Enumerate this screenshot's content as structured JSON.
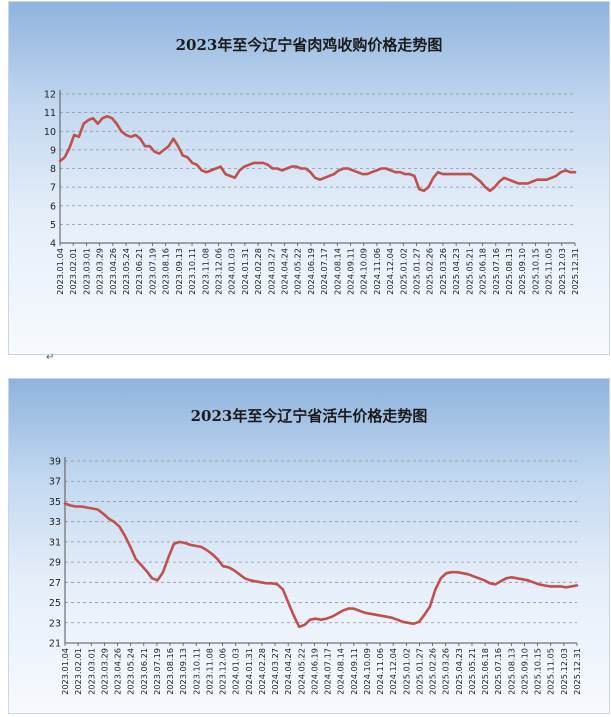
{
  "chart_data": [
    {
      "type": "line",
      "title": "2023年至今辽宁省肉鸡收购价格走势图",
      "xlabel": "",
      "ylabel": "",
      "ylim": [
        4,
        12
      ],
      "yticks": [
        4,
        5,
        6,
        7,
        8,
        9,
        10,
        11,
        12
      ],
      "grid": true,
      "x_ticks": [
        "2023.01.04",
        "2023.02.01",
        "2023.03.01",
        "2023.03.29",
        "2023.04.26",
        "2023.05.24",
        "2023.06.21",
        "2023.07.19",
        "2023.08.16",
        "2023.09.13",
        "2023.10.11",
        "2023.11.08",
        "2023.12.06",
        "2024.01.03",
        "2024.01.31",
        "2024.02.28",
        "2024.03.27",
        "2024.04.24",
        "2024.05.22",
        "2024.06.19",
        "2024.07.17",
        "2024.08.14",
        "2024.09.11",
        "2024.10.09",
        "2024.11.06",
        "2024.12.04",
        "2025.01.02",
        "2025.01.27",
        "2025.02.26",
        "2025.03.26",
        "2025.04.23",
        "2025.05.21",
        "2025.06.18",
        "2025.07.16",
        "2025.08.13",
        "2025.09.10",
        "2025.10.15",
        "2025.11.05",
        "2025.12.03",
        "2025.12.31"
      ],
      "series_color": "#c0504d",
      "values": [
        8.4,
        8.6,
        9.1,
        9.8,
        9.7,
        10.4,
        10.6,
        10.7,
        10.4,
        10.7,
        10.8,
        10.7,
        10.4,
        10.0,
        9.8,
        9.7,
        9.8,
        9.6,
        9.2,
        9.2,
        8.9,
        8.8,
        9.0,
        9.2,
        9.6,
        9.2,
        8.7,
        8.6,
        8.3,
        8.2,
        7.9,
        7.8,
        7.9,
        8.0,
        8.1,
        7.7,
        7.6,
        7.5,
        7.9,
        8.1,
        8.2,
        8.3,
        8.3,
        8.3,
        8.2,
        8.0,
        8.0,
        7.9,
        8.0,
        8.1,
        8.1,
        8.0,
        8.0,
        7.8,
        7.5,
        7.4,
        7.5,
        7.6,
        7.7,
        7.9,
        8.0,
        8.0,
        7.9,
        7.8,
        7.7,
        7.7,
        7.8,
        7.9,
        8.0,
        8.0,
        7.9,
        7.8,
        7.8,
        7.7,
        7.7,
        7.6,
        6.9,
        6.8,
        7.0,
        7.5,
        7.8,
        7.7,
        7.7,
        7.7,
        7.7,
        7.7,
        7.7,
        7.7,
        7.5,
        7.3,
        7.0,
        6.8,
        7.0,
        7.3,
        7.5,
        7.4,
        7.3,
        7.2,
        7.2,
        7.2,
        7.3,
        7.4,
        7.4,
        7.4,
        7.5,
        7.6,
        7.8,
        7.9,
        7.8,
        7.8
      ]
    },
    {
      "type": "line",
      "title": "2023年至今辽宁省活牛价格走势图",
      "xlabel": "",
      "ylabel": "",
      "ylim": [
        21,
        39
      ],
      "yticks": [
        21,
        23,
        25,
        27,
        29,
        31,
        33,
        35,
        37,
        39
      ],
      "grid": true,
      "x_ticks": [
        "2023.01.04",
        "2023.02.01",
        "2023.03.01",
        "2023.03.29",
        "2023.04.26",
        "2023.05.24",
        "2023.06.21",
        "2023.07.19",
        "2023.08.16",
        "2023.09.13",
        "2023.10.11",
        "2023.11.08",
        "2023.12.06",
        "2024.01.03",
        "2024.01.31",
        "2024.02.28",
        "2024.03.27",
        "2024.04.24",
        "2024.05.22",
        "2024.06.19",
        "2024.07.17",
        "2024.08.14",
        "2024.09.11",
        "2024.10.09",
        "2024.11.06",
        "2024.12.04",
        "2025.01.02",
        "2025.01.27",
        "2025.02.26",
        "2025.03.26",
        "2025.04.23",
        "2025.05.21",
        "2025.06.18",
        "2025.07.16",
        "2025.08.13",
        "2025.09.10",
        "2025.10.15",
        "2025.11.05",
        "2025.12.03",
        "2025.12.31"
      ],
      "series_color": "#c0504d",
      "values": [
        34.8,
        34.6,
        34.5,
        34.5,
        34.4,
        34.3,
        34.2,
        33.8,
        33.3,
        33.0,
        32.5,
        31.6,
        30.5,
        29.3,
        28.7,
        28.1,
        27.4,
        27.2,
        28.0,
        29.5,
        30.8,
        31.0,
        30.9,
        30.7,
        30.6,
        30.5,
        30.2,
        29.8,
        29.3,
        28.6,
        28.5,
        28.2,
        27.8,
        27.4,
        27.2,
        27.1,
        27.0,
        26.9,
        26.9,
        26.8,
        26.3,
        25.0,
        23.7,
        22.6,
        22.8,
        23.3,
        23.4,
        23.3,
        23.4,
        23.6,
        23.9,
        24.2,
        24.4,
        24.4,
        24.2,
        24.0,
        23.9,
        23.8,
        23.7,
        23.6,
        23.5,
        23.3,
        23.1,
        23.0,
        22.9,
        23.1,
        23.8,
        24.6,
        26.3,
        27.4,
        27.9,
        28.0,
        28.0,
        27.9,
        27.8,
        27.6,
        27.4,
        27.2,
        26.9,
        26.8,
        27.1,
        27.4,
        27.5,
        27.4,
        27.3,
        27.2,
        27.0,
        26.8,
        26.7,
        26.6,
        26.6,
        26.6,
        26.5,
        26.6,
        26.7
      ]
    }
  ],
  "decor": {
    "para_mark": "↵"
  }
}
